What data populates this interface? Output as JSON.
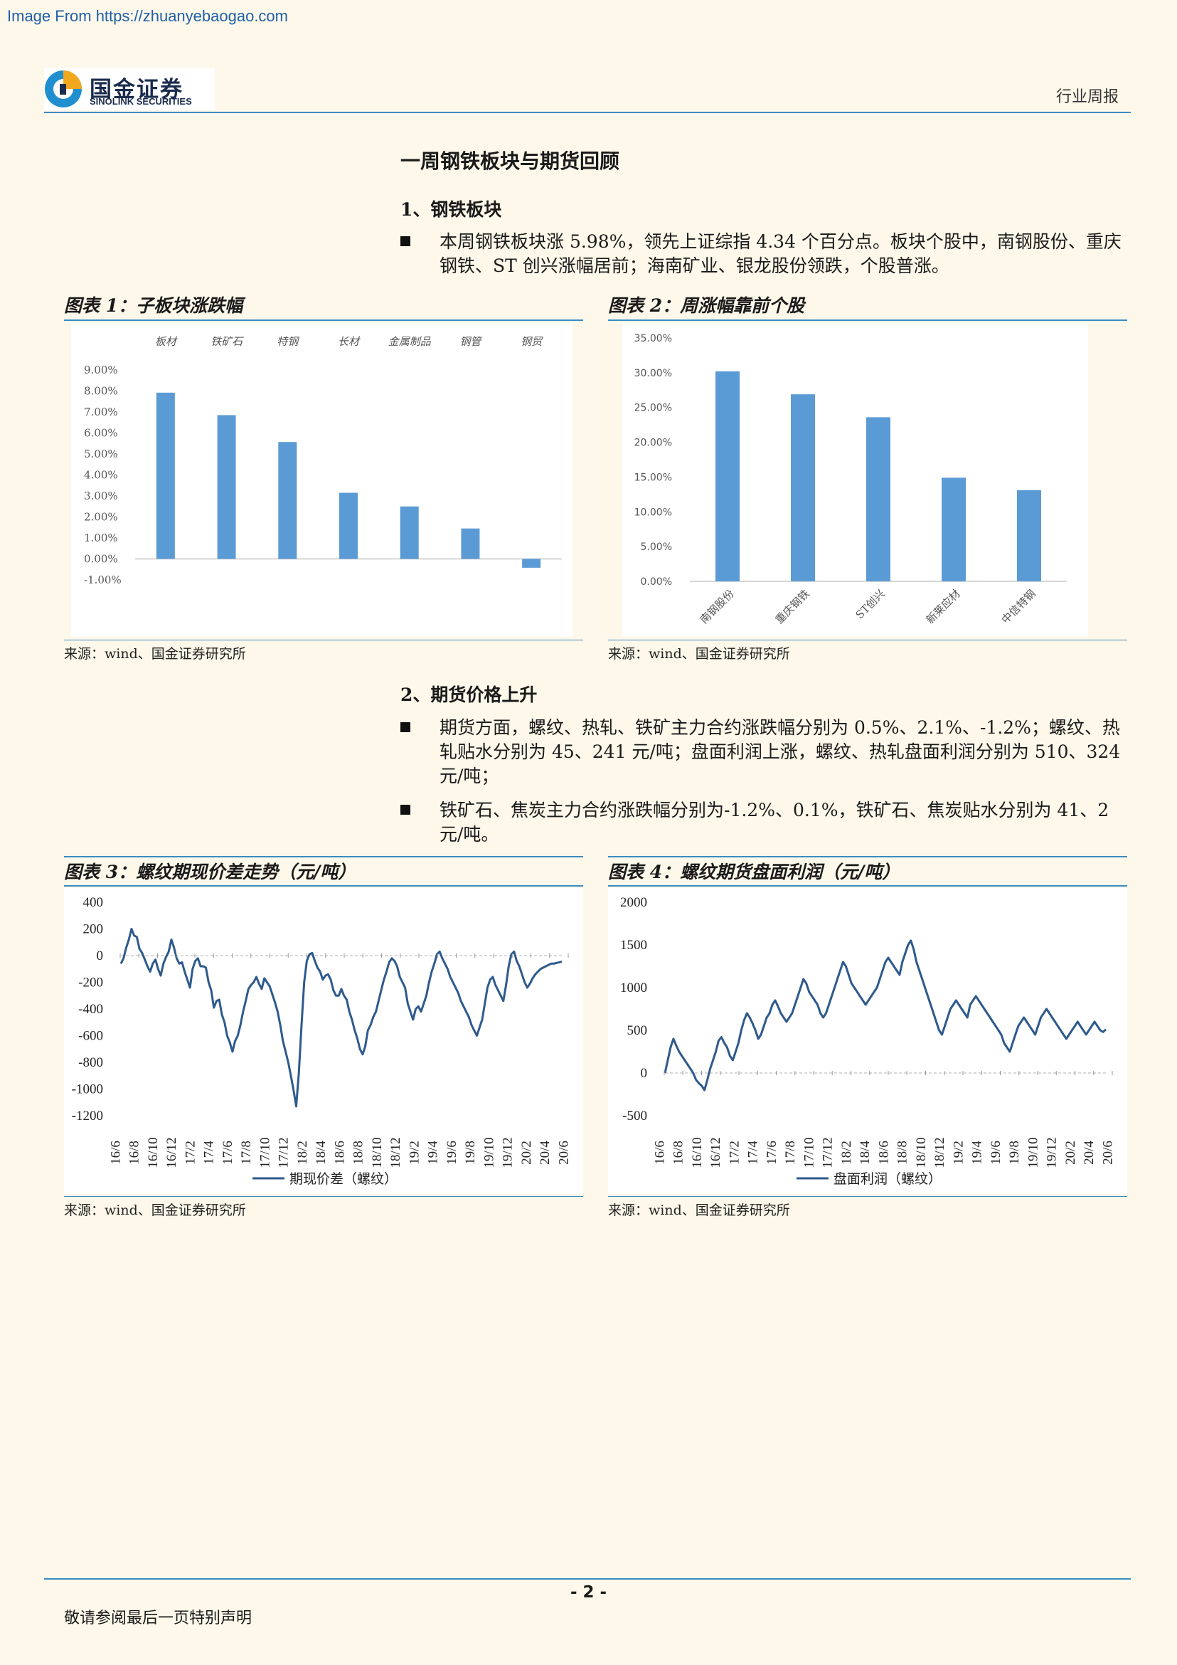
{
  "watermark": "Image From https://zhuanyebaogao.com",
  "header": {
    "logo_cn": "国金证券",
    "logo_en": "SINOLINK SECURITIES",
    "report_type": "行业周报"
  },
  "section": {
    "title": "一周钢铁板块与期货回顾",
    "sub1": {
      "heading": "1、钢铁板块",
      "bullets": [
        "本周钢铁板块涨 5.98%，领先上证综指 4.34 个百分点。板块个股中，南钢股份、重庆钢铁、ST 创兴涨幅居前；海南矿业、银龙股份领跌，个股普涨。"
      ]
    },
    "sub2": {
      "heading": "2、期货价格上升",
      "bullets": [
        "期货方面，螺纹、热轧、铁矿主力合约涨跌幅分别为 0.5%、2.1%、-1.2%；螺纹、热轧贴水分别为 45、241 元/吨；盘面利润上涨，螺纹、热轧盘面利润分别为 510、324 元/吨；",
        "铁矿石、焦炭主力合约涨跌幅分别为-1.2%、0.1%，铁矿石、焦炭贴水分别为 41、2 元/吨。"
      ]
    }
  },
  "figures": {
    "fig1": {
      "title": "图表 1：子板块涨跌幅",
      "source": "来源：wind、国金证券研究所"
    },
    "fig2": {
      "title": "图表 2：周涨幅靠前个股",
      "source": "来源：wind、国金证券研究所"
    },
    "fig3": {
      "title": "图表 3：螺纹期现价差走势（元/吨）",
      "source": "来源：wind、国金证券研究所"
    },
    "fig4": {
      "title": "图表 4：螺纹期货盘面利润（元/吨）",
      "source": "来源：wind、国金证券研究所"
    }
  },
  "footer": {
    "page_number": "- 2 -",
    "disclaimer": "敬请参阅最后一页特别声明"
  },
  "colors": {
    "bar": "#5b9bd5",
    "line": "#2e5a8c",
    "rule": "#3a8bc2",
    "page_bg": "#fdf8ea"
  },
  "chart_data": [
    {
      "id": "fig1",
      "type": "bar",
      "categories": [
        "板材",
        "铁矿石",
        "特钢",
        "长材",
        "金属制品",
        "钢管",
        "钢贸"
      ],
      "values": [
        7.92,
        6.85,
        5.57,
        3.15,
        2.5,
        1.45,
        -0.42
      ],
      "ylim": [
        -1.0,
        9.0
      ],
      "yticks": [
        "-1.00%",
        "0.00%",
        "1.00%",
        "2.00%",
        "3.00%",
        "4.00%",
        "5.00%",
        "6.00%",
        "7.00%",
        "8.00%",
        "9.00%"
      ],
      "category_labels_position": "top"
    },
    {
      "id": "fig2",
      "type": "bar",
      "categories": [
        "南钢股份",
        "重庆钢铁",
        "ST创兴",
        "新莱应材",
        "中信特钢"
      ],
      "values": [
        30.2,
        26.9,
        23.6,
        14.9,
        13.1
      ],
      "ylim": [
        0,
        35
      ],
      "yticks": [
        "0.00%",
        "5.00%",
        "10.00%",
        "15.00%",
        "20.00%",
        "25.00%",
        "30.00%",
        "35.00%"
      ]
    },
    {
      "id": "fig3",
      "type": "line",
      "series": [
        {
          "name": "期现价差（螺纹）",
          "values": [
            -60,
            -20,
            60,
            120,
            200,
            150,
            140,
            50,
            20,
            -30,
            -80,
            -120,
            -60,
            -30,
            -100,
            -150,
            -60,
            -10,
            30,
            120,
            60,
            -20,
            -60,
            -50,
            -120,
            -180,
            -240,
            -100,
            -40,
            -20,
            -80,
            -80,
            -90,
            -200,
            -260,
            -390,
            -340,
            -330,
            -440,
            -500,
            -600,
            -650,
            -720,
            -640,
            -600,
            -520,
            -420,
            -340,
            -250,
            -220,
            -200,
            -160,
            -210,
            -250,
            -170,
            -200,
            -230,
            -290,
            -350,
            -420,
            -520,
            -640,
            -720,
            -800,
            -900,
            -1010,
            -1130,
            -880,
            -520,
            -200,
            -40,
            10,
            20,
            -40,
            -90,
            -120,
            -180,
            -150,
            -140,
            -180,
            -260,
            -300,
            -300,
            -250,
            -300,
            -330,
            -420,
            -480,
            -560,
            -620,
            -700,
            -740,
            -680,
            -560,
            -520,
            -460,
            -420,
            -340,
            -260,
            -180,
            -120,
            -50,
            -20,
            -40,
            -80,
            -160,
            -200,
            -240,
            -360,
            -420,
            -480,
            -400,
            -380,
            -420,
            -360,
            -300,
            -200,
            -120,
            -60,
            10,
            30,
            -20,
            -60,
            -100,
            -160,
            -200,
            -240,
            -280,
            -340,
            -380,
            -420,
            -460,
            -520,
            -560,
            -600,
            -540,
            -480,
            -360,
            -240,
            -180,
            -160,
            -220,
            -260,
            -300,
            -340,
            -220,
            -80,
            10,
            30,
            -40,
            -80,
            -140,
            -200,
            -240,
            -210,
            -170,
            -140,
            -120,
            -100,
            -90,
            -80,
            -70,
            -60,
            -60,
            -55,
            -50,
            -45
          ]
        }
      ],
      "ylim": [
        -1200,
        400
      ],
      "yticks": [
        "-1200",
        "-1000",
        "-800",
        "-600",
        "-400",
        "-200",
        "0",
        "200",
        "400"
      ],
      "xticks": [
        "16/6",
        "16/8",
        "16/10",
        "16/12",
        "17/2",
        "17/4",
        "17/6",
        "17/8",
        "17/10",
        "17/12",
        "18/2",
        "18/4",
        "18/6",
        "18/8",
        "18/10",
        "18/12",
        "19/2",
        "19/4",
        "19/6",
        "19/8",
        "19/10",
        "19/12",
        "20/2",
        "20/4",
        "20/6"
      ],
      "legend": "bottom"
    },
    {
      "id": "fig4",
      "type": "line",
      "series": [
        {
          "name": "盘面利润（螺纹）",
          "values": [
            0,
            150,
            300,
            400,
            320,
            250,
            200,
            150,
            100,
            50,
            0,
            -80,
            -120,
            -150,
            -200,
            -80,
            50,
            150,
            250,
            380,
            420,
            350,
            300,
            200,
            150,
            250,
            350,
            500,
            620,
            700,
            650,
            580,
            500,
            400,
            450,
            550,
            650,
            700,
            800,
            850,
            780,
            700,
            650,
            600,
            650,
            700,
            800,
            900,
            1000,
            1100,
            1050,
            950,
            900,
            850,
            800,
            700,
            650,
            700,
            800,
            900,
            1000,
            1100,
            1200,
            1300,
            1250,
            1150,
            1050,
            1000,
            950,
            900,
            850,
            800,
            850,
            900,
            950,
            1000,
            1100,
            1200,
            1300,
            1350,
            1300,
            1250,
            1200,
            1150,
            1300,
            1400,
            1500,
            1550,
            1450,
            1300,
            1200,
            1100,
            1000,
            900,
            800,
            700,
            600,
            500,
            450,
            550,
            650,
            750,
            800,
            850,
            800,
            750,
            700,
            650,
            800,
            850,
            900,
            850,
            800,
            750,
            700,
            650,
            600,
            550,
            500,
            450,
            350,
            300,
            250,
            350,
            450,
            550,
            600,
            650,
            600,
            550,
            500,
            450,
            550,
            650,
            700,
            750,
            700,
            650,
            600,
            550,
            500,
            450,
            400,
            450,
            500,
            550,
            600,
            550,
            500,
            450,
            500,
            550,
            600,
            550,
            500,
            480,
            510
          ]
        }
      ],
      "ylim": [
        -500,
        2000
      ],
      "yticks": [
        "-500",
        "0",
        "500",
        "1000",
        "1500",
        "2000"
      ],
      "xticks": [
        "16/6",
        "16/8",
        "16/10",
        "16/12",
        "17/2",
        "17/4",
        "17/6",
        "17/8",
        "17/10",
        "17/12",
        "18/2",
        "18/4",
        "18/6",
        "18/8",
        "18/10",
        "18/12",
        "19/2",
        "19/4",
        "19/6",
        "19/8",
        "19/10",
        "19/12",
        "20/2",
        "20/4",
        "20/6"
      ],
      "legend": "bottom"
    }
  ]
}
